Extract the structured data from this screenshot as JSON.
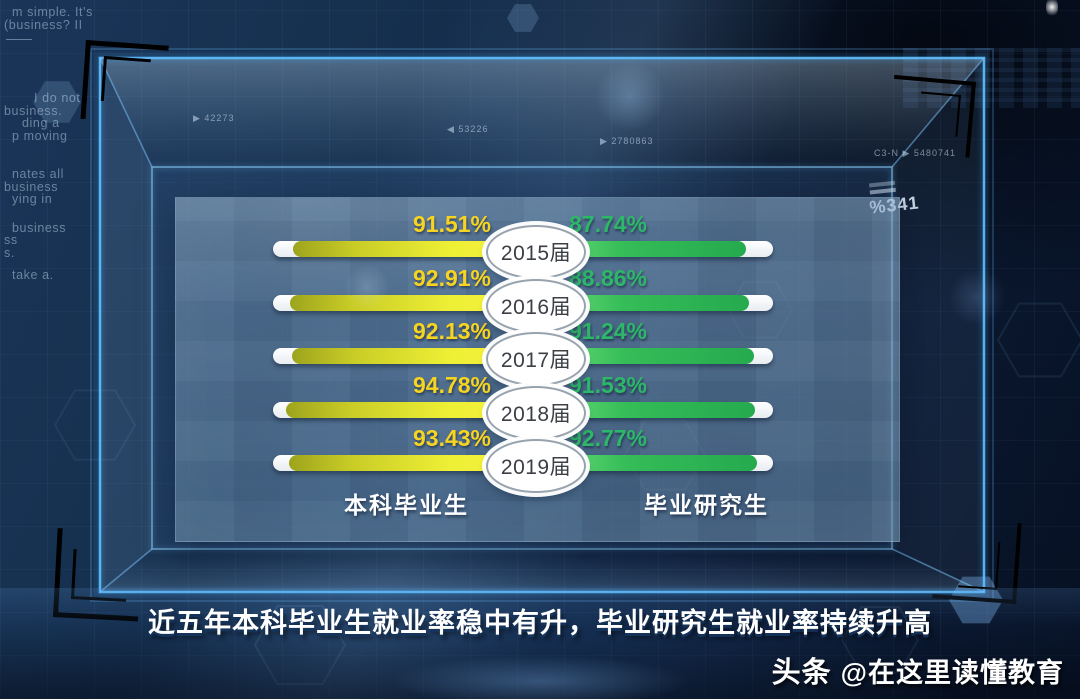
{
  "chart_data": {
    "type": "bar",
    "orientation": "horizontal-diverging-from-center",
    "categories": [
      "2015届",
      "2016届",
      "2017届",
      "2018届",
      "2019届"
    ],
    "series": [
      {
        "name": "本科毕业生",
        "side": "left",
        "color": "#e9e832",
        "values": [
          91.51,
          92.91,
          92.13,
          94.78,
          93.43
        ]
      },
      {
        "name": "毕业研究生",
        "side": "right",
        "color": "#2fb457",
        "values": [
          87.74,
          88.86,
          91.24,
          91.53,
          92.77
        ]
      }
    ],
    "value_suffix": "%",
    "xlim": [
      0,
      100
    ],
    "grid": false,
    "legend_position": "bottom"
  },
  "panel": {
    "axis_left_label": "本科毕业生",
    "axis_right_label": "毕业研究生"
  },
  "caption": "近五年本科毕业生就业率稳中有升，毕业研究生就业率持续升高",
  "watermark": {
    "brand": "头条",
    "handle": "@在这里读懂教育"
  },
  "background": {
    "hud_numbers": [
      {
        "prefix": "▶",
        "text": "42273"
      },
      {
        "prefix": "◀",
        "text": "53226"
      },
      {
        "prefix": "▶",
        "text": "2780863"
      },
      {
        "prefix": "C3-N ▶",
        "text": "5480741"
      }
    ],
    "hud_percent": "%341",
    "side_text_lines": [
      "m simple. It's",
      "(business? II",
      "I do not",
      "business.",
      "ding a",
      "p moving",
      "nates all",
      "business",
      "ying in",
      "business",
      "ss",
      "s.",
      "take a."
    ]
  },
  "colors": {
    "bar_yellow": "#e9e832",
    "bar_green": "#2fb457",
    "value_text_yellow": "#f7d41f",
    "value_text_green": "#2db768",
    "frame_cyan": "#5fc0ff",
    "track_white": "#f4f7f9",
    "panel_blue": "#54788f",
    "background_navy": "#0e2242"
  }
}
